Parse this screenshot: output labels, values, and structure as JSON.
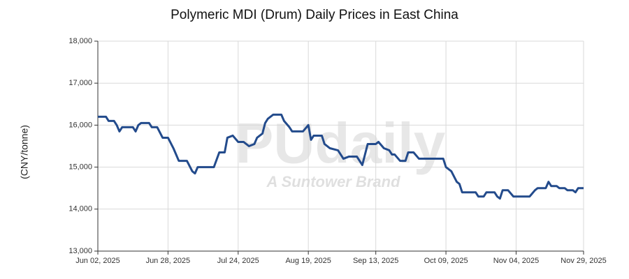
{
  "chart_data": {
    "type": "line",
    "title": "Polymeric MDI (Drum) Daily Prices in East China",
    "y_label": "(CNY/tonne)",
    "watermark": [
      "PUdaily",
      "A Suntower Brand"
    ],
    "x": [
      "2025-06-02",
      "2025-06-05",
      "2025-06-06",
      "2025-06-08",
      "2025-06-09",
      "2025-06-10",
      "2025-06-11",
      "2025-06-15",
      "2025-06-16",
      "2025-06-17",
      "2025-06-18",
      "2025-06-21",
      "2025-06-22",
      "2025-06-24",
      "2025-06-26",
      "2025-06-28",
      "2025-06-30",
      "2025-07-02",
      "2025-07-05",
      "2025-07-07",
      "2025-07-08",
      "2025-07-09",
      "2025-07-15",
      "2025-07-17",
      "2025-07-19",
      "2025-07-20",
      "2025-07-22",
      "2025-07-24",
      "2025-07-26",
      "2025-07-28",
      "2025-07-30",
      "2025-07-31",
      "2025-08-02",
      "2025-08-03",
      "2025-08-04",
      "2025-08-06",
      "2025-08-09",
      "2025-08-10",
      "2025-08-12",
      "2025-08-13",
      "2025-08-17",
      "2025-08-19",
      "2025-08-20",
      "2025-08-21",
      "2025-08-24",
      "2025-08-25",
      "2025-08-27",
      "2025-08-30",
      "2025-09-01",
      "2025-09-03",
      "2025-09-06",
      "2025-09-08",
      "2025-09-10",
      "2025-09-13",
      "2025-09-14",
      "2025-09-16",
      "2025-09-18",
      "2025-09-19",
      "2025-09-20",
      "2025-09-22",
      "2025-09-24",
      "2025-09-25",
      "2025-09-27",
      "2025-09-29",
      "2025-10-08",
      "2025-10-09",
      "2025-10-11",
      "2025-10-13",
      "2025-10-14",
      "2025-10-15",
      "2025-10-20",
      "2025-10-21",
      "2025-10-23",
      "2025-10-24",
      "2025-10-27",
      "2025-10-28",
      "2025-10-29",
      "2025-10-30",
      "2025-11-01",
      "2025-11-03",
      "2025-11-09",
      "2025-11-11",
      "2025-11-12",
      "2025-11-15",
      "2025-11-16",
      "2025-11-17",
      "2025-11-19",
      "2025-11-20",
      "2025-11-22",
      "2025-11-23",
      "2025-11-25",
      "2025-11-26",
      "2025-11-27",
      "2025-11-29"
    ],
    "series": [
      {
        "name": "Polymeric MDI (Drum)",
        "color": "#234b8c",
        "values": [
          16200,
          16200,
          16100,
          16100,
          16000,
          15850,
          15950,
          15950,
          15850,
          16000,
          16050,
          16050,
          15950,
          15950,
          15700,
          15700,
          15450,
          15150,
          15150,
          14900,
          14850,
          15000,
          15000,
          15350,
          15350,
          15700,
          15750,
          15600,
          15600,
          15500,
          15550,
          15700,
          15800,
          16050,
          16150,
          16250,
          16250,
          16100,
          15950,
          15850,
          15850,
          16000,
          15650,
          15750,
          15750,
          15550,
          15450,
          15400,
          15200,
          15250,
          15250,
          15050,
          15550,
          15550,
          15600,
          15450,
          15400,
          15300,
          15300,
          15150,
          15150,
          15350,
          15350,
          15200,
          15200,
          15000,
          14900,
          14650,
          14600,
          14400,
          14400,
          14300,
          14300,
          14400,
          14400,
          14300,
          14250,
          14450,
          14450,
          14300,
          14300,
          14450,
          14500,
          14500,
          14650,
          14550,
          14550,
          14500,
          14500,
          14450,
          14450,
          14400,
          14500,
          14500
        ]
      }
    ],
    "xlim": [
      "2025-06-02",
      "2025-11-29"
    ],
    "xticks": [
      {
        "value": "2025-06-02",
        "label": "Jun 02, 2025"
      },
      {
        "value": "2025-06-28",
        "label": "Jun 28, 2025"
      },
      {
        "value": "2025-07-24",
        "label": "Jul 24, 2025"
      },
      {
        "value": "2025-08-19",
        "label": "Aug 19, 2025"
      },
      {
        "value": "2025-09-13",
        "label": "Sep 13, 2025"
      },
      {
        "value": "2025-10-09",
        "label": "Oct 09, 2025"
      },
      {
        "value": "2025-11-04",
        "label": "Nov 04, 2025"
      },
      {
        "value": "2025-11-29",
        "label": "Nov 29, 2025"
      }
    ],
    "ylim": [
      13000,
      18000
    ],
    "yticks": [
      {
        "value": 13000,
        "label": "13,000"
      },
      {
        "value": 14000,
        "label": "14,000"
      },
      {
        "value": 15000,
        "label": "15,000"
      },
      {
        "value": 16000,
        "label": "16,000"
      },
      {
        "value": 17000,
        "label": "17,000"
      },
      {
        "value": 18000,
        "label": "18,000"
      }
    ],
    "grid": true
  }
}
